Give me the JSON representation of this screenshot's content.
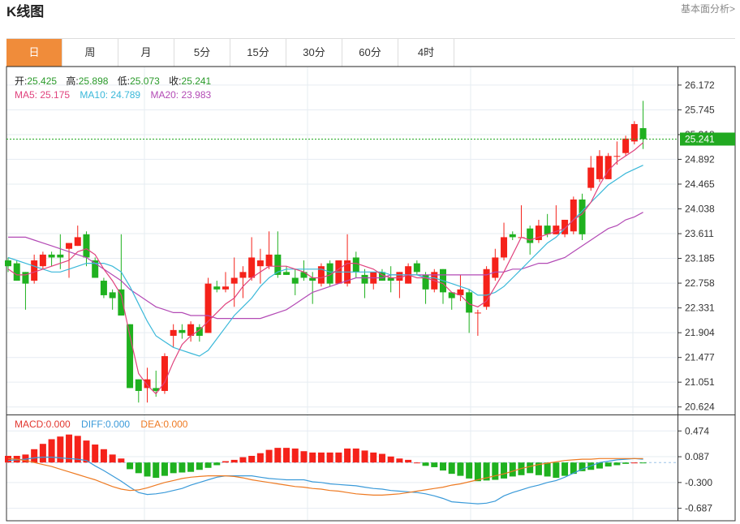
{
  "header": {
    "title": "K线图",
    "link": "基本面分析>"
  },
  "tabs": [
    {
      "label": "日",
      "active": true
    },
    {
      "label": "周"
    },
    {
      "label": "月"
    },
    {
      "label": "5分"
    },
    {
      "label": "15分"
    },
    {
      "label": "30分"
    },
    {
      "label": "60分"
    },
    {
      "label": "4时"
    }
  ],
  "colors": {
    "up": "#f5221a",
    "down": "#1fb11f",
    "ma5": "#e0427d",
    "ma10": "#3ab8d9",
    "ma20": "#b34ab5",
    "diff": "#3a9ad9",
    "dea": "#ee7a22",
    "last_price_bg": "#21a921"
  },
  "legend": {
    "open_label": "开:",
    "open": "25.425",
    "high_label": "高:",
    "high": "25.898",
    "low_label": "低:",
    "low": "25.073",
    "close_label": "收:",
    "close": "25.241",
    "ma5": "MA5: 25.175",
    "ma10": "MA10: 24.789",
    "ma20": "MA20: 23.983"
  },
  "macd_legend": {
    "macd": "MACD:0.000",
    "diff": "DIFF:0.000",
    "dea": "DEA:0.000"
  },
  "chart_data": [
    {
      "type": "candlestick",
      "y_ticks": [
        "26.172",
        "25.745",
        "25.318",
        "24.892",
        "24.465",
        "24.038",
        "23.611",
        "23.185",
        "22.758",
        "22.331",
        "21.904",
        "21.477",
        "21.051",
        "20.624"
      ],
      "ylim": [
        20.55,
        26.38
      ],
      "last_price": "25.241",
      "ohlc": [
        [
          23.15,
          23.05,
          23.2,
          22.95
        ],
        [
          23.1,
          22.8,
          23.15,
          22.8
        ],
        [
          22.95,
          22.75,
          22.95,
          22.3
        ],
        [
          22.8,
          23.15,
          23.25,
          22.75
        ],
        [
          23.05,
          23.25,
          23.3,
          23.0
        ],
        [
          23.25,
          23.2,
          23.3,
          23.05
        ],
        [
          23.25,
          23.2,
          23.6,
          23.0
        ],
        [
          23.35,
          23.45,
          23.45,
          22.85
        ],
        [
          23.4,
          23.55,
          23.75,
          23.4
        ],
        [
          23.6,
          23.2,
          23.65,
          23.05
        ],
        [
          23.15,
          22.85,
          23.2,
          22.85
        ],
        [
          22.8,
          22.55,
          22.85,
          22.5
        ],
        [
          22.6,
          22.5,
          22.65,
          22.3
        ],
        [
          22.65,
          22.2,
          23.6,
          22.2
        ],
        [
          22.05,
          20.95,
          22.05,
          20.95
        ],
        [
          21.1,
          20.9,
          21.1,
          20.7
        ],
        [
          20.95,
          21.1,
          21.3,
          20.7
        ],
        [
          20.95,
          20.9,
          21.25,
          20.8
        ],
        [
          20.9,
          21.5,
          21.55,
          20.85
        ],
        [
          21.85,
          21.95,
          22.05,
          21.65
        ],
        [
          21.95,
          21.9,
          22.05,
          21.8
        ],
        [
          21.85,
          22.05,
          22.1,
          21.75
        ],
        [
          22.0,
          21.85,
          22.05,
          21.75
        ],
        [
          21.9,
          22.75,
          22.85,
          21.9
        ],
        [
          22.7,
          22.65,
          22.8,
          22.6
        ],
        [
          22.65,
          22.7,
          22.95,
          22.6
        ],
        [
          22.75,
          22.85,
          23.2,
          22.35
        ],
        [
          22.85,
          22.95,
          23.05,
          22.5
        ],
        [
          22.85,
          23.2,
          23.55,
          22.8
        ],
        [
          23.05,
          23.15,
          23.35,
          22.75
        ],
        [
          23.05,
          23.25,
          23.65,
          23.0
        ],
        [
          23.25,
          22.9,
          23.65,
          22.85
        ],
        [
          22.95,
          22.9,
          23.05,
          22.9
        ],
        [
          22.85,
          22.75,
          23.0,
          22.55
        ],
        [
          22.95,
          22.85,
          23.15,
          22.8
        ],
        [
          22.85,
          22.8,
          22.95,
          22.4
        ],
        [
          22.75,
          23.05,
          23.1,
          22.7
        ],
        [
          23.1,
          22.75,
          23.15,
          22.7
        ],
        [
          22.75,
          23.15,
          23.15,
          22.75
        ],
        [
          22.75,
          23.15,
          23.6,
          22.7
        ],
        [
          23.2,
          22.95,
          23.3,
          22.85
        ],
        [
          22.9,
          22.75,
          23.0,
          22.5
        ],
        [
          22.75,
          22.95,
          22.95,
          22.65
        ],
        [
          22.95,
          22.8,
          23.0,
          22.8
        ],
        [
          22.85,
          22.8,
          23.05,
          22.6
        ],
        [
          22.8,
          22.95,
          22.95,
          22.5
        ],
        [
          22.75,
          23.05,
          23.1,
          22.75
        ],
        [
          23.1,
          22.95,
          23.15,
          22.9
        ],
        [
          22.9,
          22.65,
          22.95,
          22.4
        ],
        [
          22.65,
          22.95,
          23.0,
          22.6
        ],
        [
          23.0,
          22.6,
          23.0,
          22.4
        ],
        [
          22.6,
          22.5,
          22.6,
          22.3
        ],
        [
          22.55,
          22.65,
          22.9,
          22.45
        ],
        [
          22.6,
          22.25,
          22.65,
          21.9
        ],
        [
          22.25,
          22.25,
          22.3,
          21.85
        ],
        [
          22.35,
          23.0,
          23.05,
          22.3
        ],
        [
          22.85,
          23.2,
          23.35,
          22.8
        ],
        [
          23.2,
          23.55,
          23.8,
          23.15
        ],
        [
          23.6,
          23.55,
          23.65,
          23.5
        ],
        [
          23.55,
          23.55,
          24.1,
          23.55
        ],
        [
          23.7,
          23.45,
          23.75,
          23.25
        ],
        [
          23.5,
          23.75,
          23.85,
          23.45
        ],
        [
          23.75,
          23.6,
          23.95,
          23.55
        ],
        [
          23.6,
          23.75,
          24.1,
          23.6
        ],
        [
          23.6,
          23.85,
          23.85,
          23.55
        ],
        [
          23.65,
          24.2,
          24.25,
          23.6
        ],
        [
          24.2,
          23.6,
          24.3,
          23.5
        ],
        [
          24.4,
          24.75,
          24.95,
          24.35
        ],
        [
          24.55,
          24.95,
          25.05,
          24.5
        ],
        [
          24.55,
          24.95,
          25.0,
          24.55
        ],
        [
          24.95,
          24.95,
          25.2,
          24.8
        ],
        [
          25.0,
          25.25,
          25.3,
          24.95
        ],
        [
          25.2,
          25.5,
          25.55,
          25.15
        ],
        [
          25.43,
          25.24,
          25.9,
          25.07
        ]
      ],
      "ma5": [
        23.0,
        22.9,
        22.9,
        22.95,
        23.0,
        23.05,
        23.1,
        23.15,
        23.3,
        23.35,
        23.25,
        23.0,
        22.8,
        22.55,
        21.85,
        21.2,
        21.0,
        20.85,
        21.05,
        21.4,
        21.7,
        21.85,
        21.95,
        22.1,
        22.25,
        22.4,
        22.5,
        22.7,
        22.85,
        22.95,
        23.05,
        23.05,
        23.05,
        23.0,
        22.95,
        22.85,
        22.85,
        22.9,
        23.0,
        23.1,
        23.1,
        23.05,
        23.0,
        22.9,
        22.85,
        22.85,
        22.9,
        22.85,
        22.85,
        22.8,
        22.75,
        22.6,
        22.55,
        22.4,
        22.35,
        22.45,
        22.7,
        22.95,
        23.25,
        23.55,
        23.5,
        23.55,
        23.6,
        23.65,
        23.7,
        23.85,
        23.95,
        24.15,
        24.45,
        24.7,
        24.85,
        24.95,
        25.05,
        25.18
      ],
      "ma10": [
        23.2,
        23.15,
        23.1,
        23.05,
        23.0,
        22.95,
        22.95,
        23.0,
        23.05,
        23.1,
        23.1,
        23.1,
        23.05,
        22.95,
        22.7,
        22.4,
        22.1,
        21.85,
        21.75,
        21.65,
        21.6,
        21.55,
        21.5,
        21.6,
        21.8,
        22.0,
        22.2,
        22.35,
        22.5,
        22.7,
        22.85,
        22.95,
        23.0,
        23.0,
        23.0,
        23.0,
        23.0,
        22.95,
        22.95,
        22.95,
        22.95,
        22.95,
        22.95,
        22.95,
        22.9,
        22.9,
        22.9,
        22.9,
        22.85,
        22.85,
        22.8,
        22.75,
        22.7,
        22.65,
        22.55,
        22.55,
        22.6,
        22.7,
        22.85,
        23.0,
        23.15,
        23.3,
        23.45,
        23.55,
        23.7,
        23.85,
        24.0,
        24.15,
        24.3,
        24.45,
        24.55,
        24.65,
        24.72,
        24.79
      ],
      "ma20": [
        23.55,
        23.55,
        23.55,
        23.5,
        23.45,
        23.4,
        23.35,
        23.3,
        23.25,
        23.2,
        23.1,
        23.0,
        22.9,
        22.8,
        22.65,
        22.55,
        22.45,
        22.35,
        22.3,
        22.25,
        22.25,
        22.2,
        22.2,
        22.2,
        22.15,
        22.15,
        22.15,
        22.15,
        22.15,
        22.15,
        22.2,
        22.25,
        22.3,
        22.4,
        22.5,
        22.6,
        22.65,
        22.7,
        22.75,
        22.8,
        22.85,
        22.85,
        22.85,
        22.85,
        22.9,
        22.9,
        22.9,
        22.9,
        22.9,
        22.9,
        22.9,
        22.9,
        22.9,
        22.9,
        22.9,
        22.9,
        22.95,
        22.95,
        23.0,
        23.0,
        23.05,
        23.1,
        23.1,
        23.15,
        23.2,
        23.3,
        23.4,
        23.5,
        23.6,
        23.7,
        23.75,
        23.85,
        23.9,
        23.98
      ]
    },
    {
      "type": "bar+line",
      "name": "MACD",
      "y_ticks": [
        "0.474",
        "0.087",
        "-0.300",
        "-0.687"
      ],
      "ylim": [
        -0.85,
        0.66
      ],
      "macd": [
        0.1,
        0.1,
        0.12,
        0.2,
        0.28,
        0.35,
        0.39,
        0.42,
        0.4,
        0.33,
        0.27,
        0.2,
        0.12,
        0.06,
        -0.1,
        -0.16,
        -0.21,
        -0.23,
        -0.2,
        -0.16,
        -0.15,
        -0.14,
        -0.11,
        -0.08,
        -0.04,
        0.02,
        0.04,
        0.08,
        0.1,
        0.14,
        0.19,
        0.22,
        0.22,
        0.21,
        0.17,
        0.15,
        0.15,
        0.15,
        0.15,
        0.21,
        0.21,
        0.18,
        0.15,
        0.13,
        0.09,
        0.06,
        0.04,
        0.0,
        -0.05,
        -0.07,
        -0.12,
        -0.17,
        -0.2,
        -0.24,
        -0.28,
        -0.27,
        -0.26,
        -0.24,
        -0.21,
        -0.19,
        -0.16,
        -0.19,
        -0.21,
        -0.23,
        -0.2,
        -0.17,
        -0.13,
        -0.11,
        -0.09,
        -0.06,
        -0.04,
        -0.02,
        0.0,
        -0.01
      ],
      "diff": [
        0.03,
        0.04,
        0.05,
        0.07,
        0.08,
        0.08,
        0.07,
        0.06,
        0.05,
        0.03,
        -0.05,
        -0.12,
        -0.2,
        -0.28,
        -0.37,
        -0.45,
        -0.48,
        -0.47,
        -0.45,
        -0.42,
        -0.39,
        -0.34,
        -0.3,
        -0.26,
        -0.22,
        -0.2,
        -0.2,
        -0.2,
        -0.2,
        -0.22,
        -0.24,
        -0.25,
        -0.26,
        -0.26,
        -0.26,
        -0.29,
        -0.3,
        -0.32,
        -0.33,
        -0.34,
        -0.35,
        -0.37,
        -0.39,
        -0.4,
        -0.42,
        -0.43,
        -0.44,
        -0.45,
        -0.47,
        -0.5,
        -0.54,
        -0.59,
        -0.6,
        -0.61,
        -0.62,
        -0.61,
        -0.58,
        -0.5,
        -0.45,
        -0.41,
        -0.37,
        -0.34,
        -0.3,
        -0.27,
        -0.22,
        -0.16,
        -0.1,
        -0.05,
        0.0,
        0.02,
        0.04,
        0.05,
        0.06,
        0.05
      ],
      "dea": [
        0.06,
        0.05,
        0.03,
        0.0,
        -0.03,
        -0.06,
        -0.1,
        -0.14,
        -0.18,
        -0.22,
        -0.26,
        -0.31,
        -0.36,
        -0.4,
        -0.42,
        -0.41,
        -0.38,
        -0.34,
        -0.3,
        -0.27,
        -0.24,
        -0.22,
        -0.21,
        -0.2,
        -0.2,
        -0.2,
        -0.21,
        -0.23,
        -0.26,
        -0.28,
        -0.3,
        -0.32,
        -0.34,
        -0.36,
        -0.37,
        -0.39,
        -0.4,
        -0.42,
        -0.43,
        -0.45,
        -0.47,
        -0.48,
        -0.49,
        -0.49,
        -0.48,
        -0.47,
        -0.45,
        -0.43,
        -0.41,
        -0.39,
        -0.37,
        -0.34,
        -0.32,
        -0.29,
        -0.26,
        -0.23,
        -0.2,
        -0.17,
        -0.13,
        -0.09,
        -0.06,
        -0.03,
        -0.01,
        0.01,
        0.03,
        0.04,
        0.05,
        0.05,
        0.06,
        0.06,
        0.06,
        0.06,
        0.06,
        0.06
      ]
    }
  ]
}
